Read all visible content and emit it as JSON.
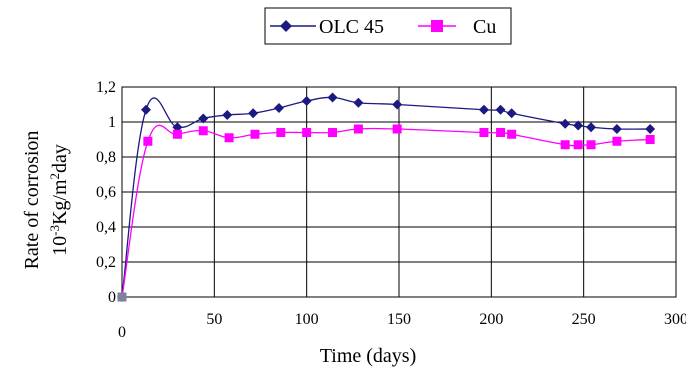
{
  "chart_data": {
    "type": "line",
    "xlabel": "Time (days)",
    "ylabel_line1": "Rate of corrosion",
    "ylabel_line2_prefix": "10",
    "ylabel_line2_exp1": "-3",
    "ylabel_line2_mid": "Kg/m",
    "ylabel_line2_exp2": "2",
    "ylabel_line2_suffix": "day",
    "xlim": [
      0,
      300
    ],
    "ylim": [
      0,
      1.2
    ],
    "x_ticks": [
      0,
      50,
      100,
      150,
      200,
      250,
      300
    ],
    "x_tick_labels": [
      "0",
      "50",
      "100",
      "150",
      "200",
      "250",
      "300"
    ],
    "y_ticks": [
      0,
      0.2,
      0.4,
      0.6,
      0.8,
      1.0,
      1.2
    ],
    "y_tick_labels": [
      "0",
      "0,2",
      "0,4",
      "0,6",
      "0,8",
      "1",
      "1,2"
    ],
    "grid": "horizontal and vertical",
    "legend_position": "top",
    "series": [
      {
        "name": "OLC 45",
        "color": "#1a1a80",
        "marker": "diamond",
        "x": [
          0,
          13,
          30,
          44,
          57,
          71,
          85,
          100,
          114,
          128,
          149,
          196,
          205,
          211,
          240,
          247,
          254,
          268,
          286
        ],
        "y": [
          0.0,
          1.07,
          0.97,
          1.02,
          1.04,
          1.05,
          1.08,
          1.12,
          1.14,
          1.11,
          1.1,
          1.07,
          1.07,
          1.05,
          0.99,
          0.98,
          0.97,
          0.96,
          0.96
        ]
      },
      {
        "name": "Cu",
        "color": "#ff00ff",
        "marker": "square",
        "x": [
          0,
          14,
          30,
          44,
          58,
          72,
          86,
          100,
          114,
          128,
          149,
          196,
          205,
          211,
          240,
          247,
          254,
          268,
          286
        ],
        "y": [
          0.0,
          0.89,
          0.93,
          0.95,
          0.91,
          0.93,
          0.94,
          0.94,
          0.94,
          0.96,
          0.96,
          0.94,
          0.94,
          0.93,
          0.87,
          0.87,
          0.87,
          0.89,
          0.9
        ]
      }
    ]
  }
}
